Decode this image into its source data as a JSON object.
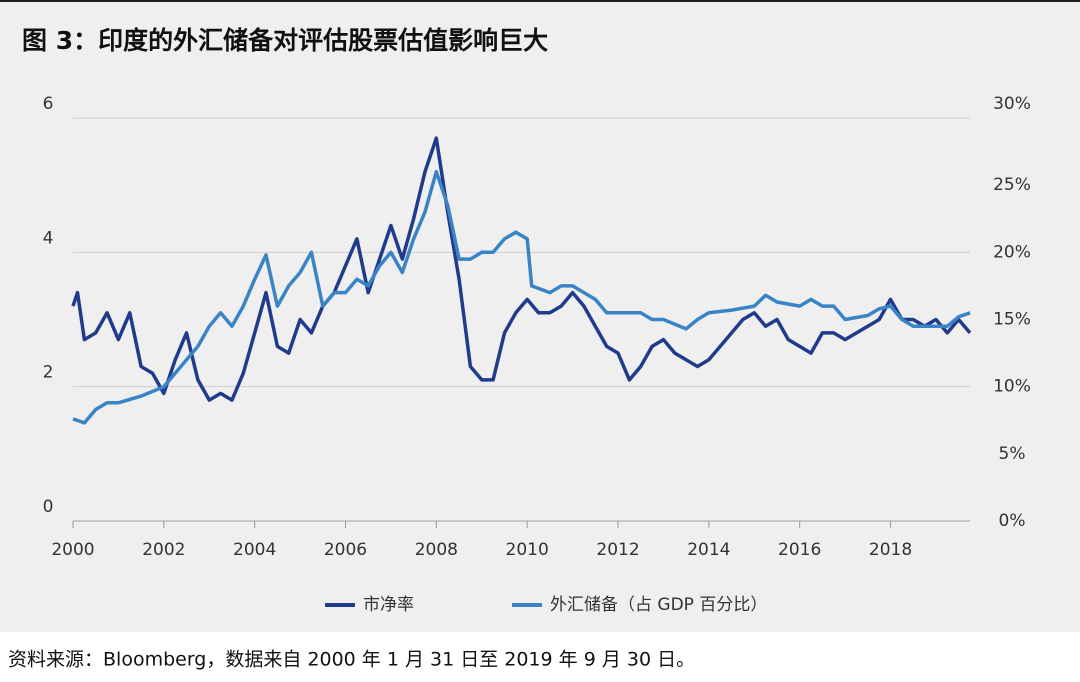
{
  "chart_data": {
    "type": "line",
    "title": "图 3：印度的外汇储备对评估股票估值影响巨大",
    "source": "资料来源：Bloomberg，数据来自 2000 年 1 月 31 日至 2019 年 9 月 30 日。",
    "xlim": [
      2000,
      2019.75
    ],
    "xticks": [
      2000,
      2002,
      2004,
      2006,
      2008,
      2010,
      2012,
      2014,
      2016,
      2018
    ],
    "ylim": [
      0,
      6
    ],
    "yticks": [
      0,
      2,
      4,
      6
    ],
    "y2lim": [
      0,
      30
    ],
    "y2ticks": [
      {
        "value": 0,
        "label": "0%"
      },
      {
        "value": 5,
        "label": "5%"
      },
      {
        "value": 10,
        "label": "10%"
      },
      {
        "value": 15,
        "label": "15%"
      },
      {
        "value": 20,
        "label": "20%"
      },
      {
        "value": 25,
        "label": "25%"
      },
      {
        "value": 30,
        "label": "30%"
      }
    ],
    "grid": true,
    "legend": "bottom",
    "series": [
      {
        "name": "市净率",
        "color": "#203a8c",
        "x": [
          2000.0,
          2000.1,
          2000.25,
          2000.5,
          2000.75,
          2001.0,
          2001.25,
          2001.5,
          2001.75,
          2002.0,
          2002.25,
          2002.5,
          2002.75,
          2003.0,
          2003.25,
          2003.5,
          2003.75,
          2004.0,
          2004.25,
          2004.5,
          2004.75,
          2005.0,
          2005.25,
          2005.5,
          2005.75,
          2006.0,
          2006.25,
          2006.5,
          2006.75,
          2007.0,
          2007.25,
          2007.5,
          2007.75,
          2007.9,
          2008.0,
          2008.25,
          2008.5,
          2008.75,
          2009.0,
          2009.25,
          2009.5,
          2009.75,
          2010.0,
          2010.25,
          2010.5,
          2010.75,
          2011.0,
          2011.25,
          2011.5,
          2011.75,
          2012.0,
          2012.25,
          2012.5,
          2012.75,
          2013.0,
          2013.25,
          2013.5,
          2013.75,
          2014.0,
          2014.25,
          2014.5,
          2014.75,
          2015.0,
          2015.25,
          2015.5,
          2015.75,
          2016.0,
          2016.25,
          2016.5,
          2016.75,
          2017.0,
          2017.25,
          2017.5,
          2017.75,
          2018.0,
          2018.25,
          2018.5,
          2018.75,
          2019.0,
          2019.25,
          2019.5,
          2019.75
        ],
        "values": [
          3.2,
          3.4,
          2.7,
          2.8,
          3.1,
          2.7,
          3.1,
          2.3,
          2.2,
          1.9,
          2.4,
          2.8,
          2.1,
          1.8,
          1.9,
          1.8,
          2.2,
          2.8,
          3.4,
          2.6,
          2.5,
          3.0,
          2.8,
          3.2,
          3.4,
          3.8,
          4.2,
          3.4,
          3.9,
          4.4,
          3.9,
          4.5,
          5.2,
          5.5,
          5.7,
          4.6,
          3.6,
          2.3,
          2.1,
          2.1,
          2.8,
          3.1,
          3.3,
          3.1,
          3.1,
          3.2,
          3.4,
          3.2,
          2.9,
          2.6,
          2.5,
          2.1,
          2.3,
          2.6,
          2.7,
          2.5,
          2.4,
          2.3,
          2.4,
          2.6,
          2.8,
          3.0,
          3.1,
          2.9,
          3.0,
          2.7,
          2.6,
          2.5,
          2.8,
          2.8,
          2.7,
          2.8,
          2.9,
          3.0,
          3.3,
          3.0,
          3.0,
          2.9,
          3.0,
          2.8,
          3.0,
          2.8
        ]
      },
      {
        "name": "外汇储备（占 GDP 百分比）",
        "color": "#3a84c6",
        "axis": "y2",
        "x": [
          2000.0,
          2000.25,
          2000.5,
          2000.75,
          2001.0,
          2001.5,
          2002.0,
          2002.5,
          2002.75,
          2003.0,
          2003.25,
          2003.5,
          2003.75,
          2004.0,
          2004.25,
          2004.5,
          2004.75,
          2005.0,
          2005.25,
          2005.5,
          2005.75,
          2006.0,
          2006.25,
          2006.5,
          2006.75,
          2007.0,
          2007.25,
          2007.5,
          2007.75,
          2008.0,
          2008.25,
          2008.5,
          2008.75,
          2009.0,
          2009.25,
          2009.5,
          2009.75,
          2010.0,
          2010.1,
          2010.5,
          2010.75,
          2011.0,
          2011.25,
          2011.5,
          2011.75,
          2012.0,
          2012.5,
          2012.75,
          2013.0,
          2013.5,
          2013.75,
          2014.0,
          2014.5,
          2015.0,
          2015.25,
          2015.5,
          2016.0,
          2016.25,
          2016.5,
          2016.75,
          2017.0,
          2017.5,
          2017.75,
          2018.0,
          2018.25,
          2018.5,
          2018.75,
          2019.0,
          2019.25,
          2019.5,
          2019.75
        ],
        "values": [
          7.6,
          7.3,
          8.3,
          8.8,
          8.8,
          9.3,
          10.0,
          12.0,
          13.0,
          14.5,
          15.5,
          14.5,
          16.0,
          18.0,
          19.8,
          16.0,
          17.5,
          18.5,
          20.0,
          16.0,
          17.0,
          17.0,
          18.0,
          17.5,
          19.0,
          20.0,
          18.5,
          21.0,
          23.0,
          26.0,
          23.5,
          19.5,
          19.5,
          20.0,
          20.0,
          21.0,
          21.5,
          21.0,
          17.5,
          17.0,
          17.5,
          17.5,
          17.0,
          16.5,
          15.5,
          15.5,
          15.5,
          15.0,
          15.0,
          14.3,
          15.0,
          15.5,
          15.7,
          16.0,
          16.8,
          16.3,
          16.0,
          16.5,
          16.0,
          16.0,
          15.0,
          15.3,
          15.8,
          16.0,
          15.0,
          14.5,
          14.5,
          14.5,
          14.5,
          15.2,
          15.5
        ]
      }
    ]
  }
}
